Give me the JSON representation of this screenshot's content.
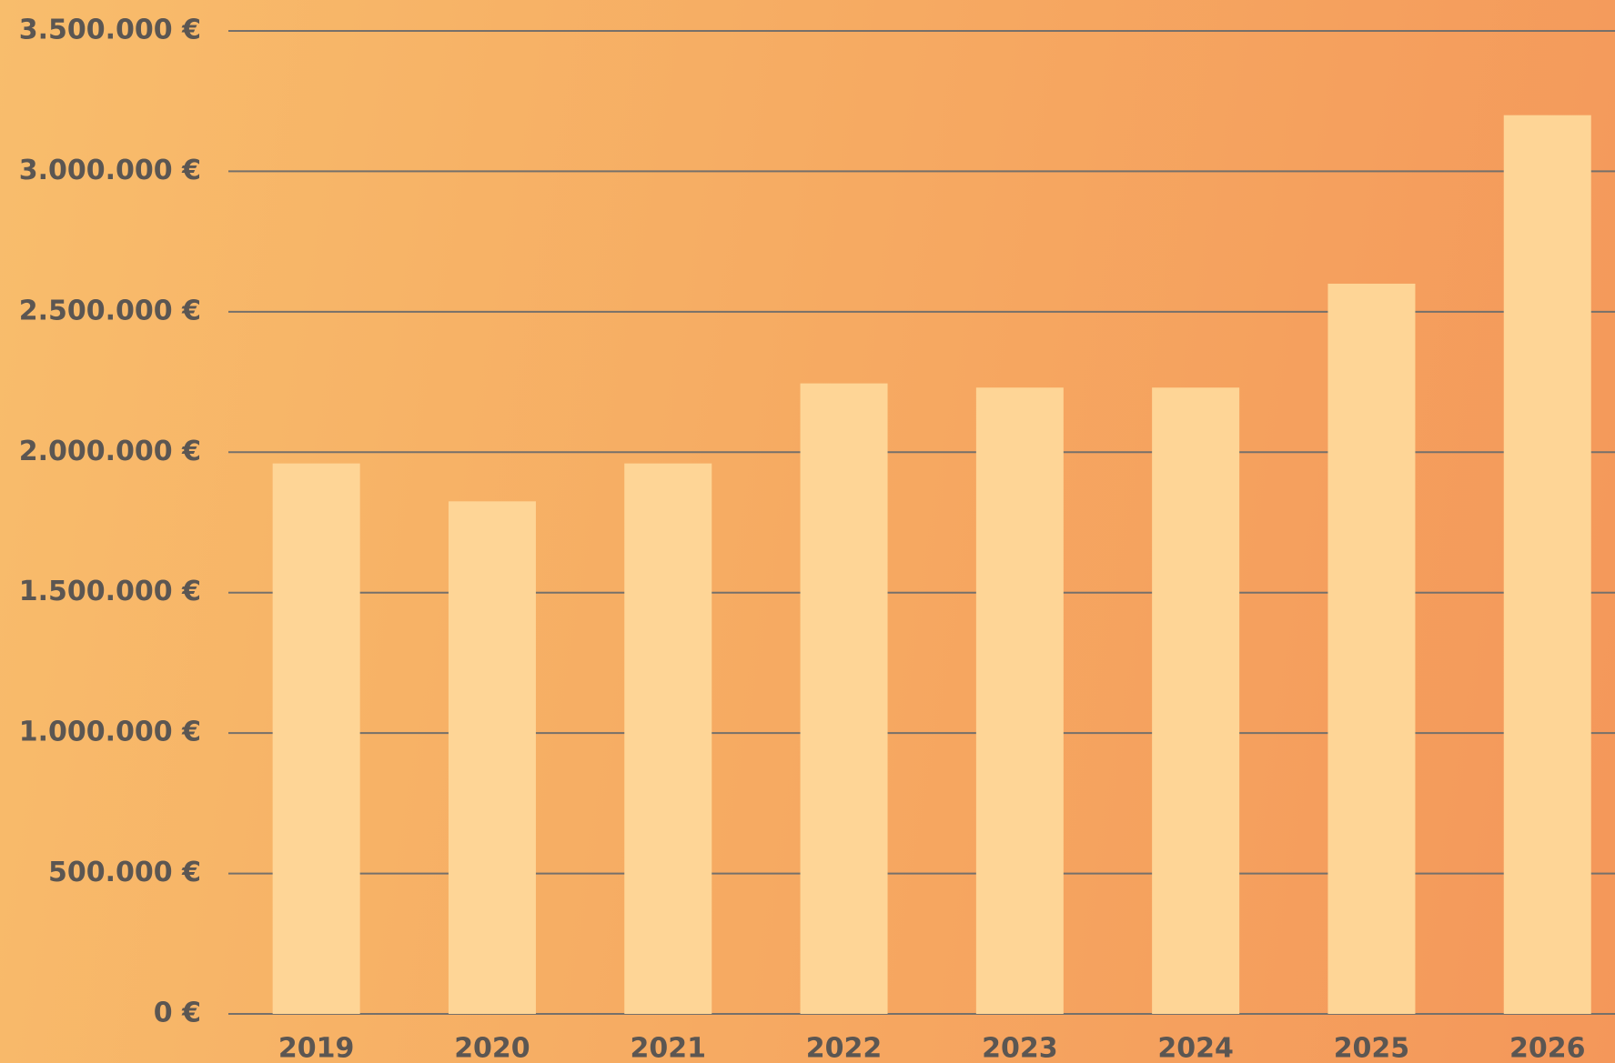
{
  "chart_data": {
    "type": "bar",
    "categories": [
      "2019",
      "2020",
      "2021",
      "2022",
      "2023",
      "2024",
      "2025",
      "2026"
    ],
    "values": [
      1960000,
      1825000,
      1960000,
      2245000,
      2230000,
      2230000,
      2600000,
      3200000
    ],
    "color": "#fed596",
    "ylim": [
      0,
      3500000
    ],
    "yticks": [
      {
        "value": 0,
        "label": "0 €"
      },
      {
        "value": 500000,
        "label": "500.000 €"
      },
      {
        "value": 1000000,
        "label": "1.000.000 €"
      },
      {
        "value": 1500000,
        "label": "1.500.000 €"
      },
      {
        "value": 2000000,
        "label": "2.000.000 €"
      },
      {
        "value": 2500000,
        "label": "2.500.000 €"
      },
      {
        "value": 3000000,
        "label": "3.000.000 €"
      },
      {
        "value": 3500000,
        "label": "3.500.000 €"
      }
    ],
    "grid": true
  }
}
